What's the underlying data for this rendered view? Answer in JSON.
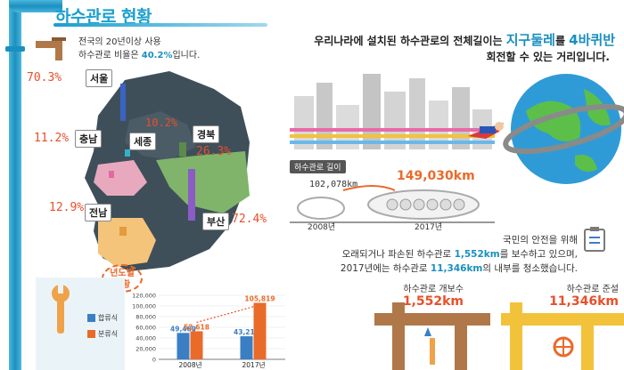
{
  "title": "하수관로 현황",
  "summary": {
    "line1": "전국의 20년이상 사용",
    "line2_prefix": "하수관로 비율은 ",
    "line2_value": "40.2%",
    "line2_suffix": "입니다."
  },
  "regions": [
    {
      "name": "서울",
      "pct": "70.3%"
    },
    {
      "name": "충남",
      "pct": "11.2%"
    },
    {
      "name": "세종",
      "pct": "10.2%"
    },
    {
      "name": "경북",
      "pct": "26.3%"
    },
    {
      "name": "전남",
      "pct": "12.9%"
    },
    {
      "name": "부산",
      "pct": "72.4%"
    }
  ],
  "yearly_badge": {
    "line1": "년도별",
    "line2": "현황"
  },
  "chart_data": {
    "type": "bar",
    "categories": [
      "2008년",
      "2017년"
    ],
    "series": [
      {
        "name": "합류식",
        "values": [
          49460,
          43210
        ],
        "color": "#3a7fc4"
      },
      {
        "name": "분류식",
        "values": [
          52618,
          105819
        ],
        "color": "#ea6a2a"
      }
    ],
    "value_labels": {
      "s0": [
        "49,460",
        "43,210"
      ],
      "s1": [
        "52,618",
        "105,819"
      ]
    },
    "yticks": [
      "0",
      "20,000",
      "40,000",
      "60,000",
      "80,000",
      "100,000",
      "120,000"
    ],
    "ylim": [
      0,
      120000
    ]
  },
  "earth_text": {
    "prefix": "우리나라에 설치된 하수관로의 전체길이는 ",
    "hl1": "지구둘레",
    "mid": "를 ",
    "hl2": "4바퀴반",
    "line2": "회전할 수 있는 거리입니다."
  },
  "length": {
    "label": "하수관로 길이",
    "v2008": "102,078km",
    "v2017": "149,030km",
    "y2008": "2008년",
    "y2017": "2017년"
  },
  "safety": {
    "line1": "국민의 안전을 위해",
    "line2_a": "오래되거나 파손된 하수관로 ",
    "line2_v": "1,552km",
    "line2_b": "를 보수하고 있으며,",
    "line3_a": "2017년에는 하수관로 ",
    "line3_v": "11,346km",
    "line3_b": "의 내부를 청소했습니다."
  },
  "repair": {
    "label": "하수관로 개보수",
    "value": "1,552km"
  },
  "dredge": {
    "label": "하수관로 준설",
    "value": "11,346km"
  }
}
